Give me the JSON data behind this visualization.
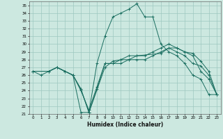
{
  "title": "",
  "xlabel": "Humidex (Indice chaleur)",
  "ylabel": "",
  "background_color": "#cce8e0",
  "grid_color": "#9ec8c0",
  "line_color": "#1a6e60",
  "xlim": [
    -0.5,
    23.5
  ],
  "ylim": [
    21,
    35.5
  ],
  "yticks": [
    21,
    22,
    23,
    24,
    25,
    26,
    27,
    28,
    29,
    30,
    31,
    32,
    33,
    34,
    35
  ],
  "xticks": [
    0,
    1,
    2,
    3,
    4,
    5,
    6,
    7,
    8,
    9,
    10,
    11,
    12,
    13,
    14,
    15,
    16,
    17,
    18,
    19,
    20,
    21,
    22,
    23
  ],
  "lines": [
    {
      "x": [
        0,
        1,
        2,
        3,
        4,
        5,
        6,
        7,
        8,
        9,
        10,
        11,
        12,
        13,
        14,
        15,
        16,
        17,
        18,
        19,
        20,
        21,
        22,
        23
      ],
      "y": [
        26.5,
        26.0,
        26.5,
        27.0,
        26.5,
        26.0,
        21.2,
        21.2,
        27.5,
        31.0,
        33.5,
        34.0,
        34.5,
        35.2,
        33.5,
        33.5,
        30.0,
        29.0,
        28.5,
        27.5,
        26.0,
        25.5,
        23.5,
        23.5
      ]
    },
    {
      "x": [
        0,
        2,
        3,
        4,
        5,
        6,
        7,
        8,
        9,
        10,
        11,
        12,
        13,
        14,
        15,
        16,
        17,
        18,
        19,
        20,
        21,
        22,
        23
      ],
      "y": [
        26.5,
        26.5,
        27.0,
        26.5,
        26.0,
        24.2,
        21.2,
        24.2,
        27.5,
        27.5,
        27.5,
        28.0,
        28.0,
        28.0,
        28.5,
        29.0,
        29.5,
        29.0,
        28.5,
        27.5,
        27.2,
        26.0,
        23.5
      ]
    },
    {
      "x": [
        0,
        2,
        3,
        4,
        5,
        6,
        7,
        9,
        10,
        11,
        12,
        13,
        14,
        15,
        16,
        17,
        18,
        19,
        20,
        21,
        22,
        23
      ],
      "y": [
        26.5,
        26.5,
        27.0,
        26.5,
        26.0,
        24.2,
        21.2,
        27.0,
        27.8,
        28.0,
        28.5,
        28.5,
        28.5,
        29.0,
        29.5,
        30.0,
        29.5,
        29.0,
        28.8,
        27.8,
        26.5,
        23.5
      ]
    },
    {
      "x": [
        0,
        2,
        3,
        5,
        6,
        7,
        8,
        9,
        10,
        11,
        12,
        13,
        16,
        17,
        18,
        19,
        20,
        21,
        22,
        23
      ],
      "y": [
        26.5,
        26.5,
        27.0,
        26.0,
        24.0,
        21.5,
        24.5,
        27.5,
        27.5,
        28.0,
        28.0,
        28.5,
        28.8,
        29.5,
        29.5,
        29.0,
        28.5,
        26.5,
        25.5,
        23.5
      ]
    }
  ]
}
